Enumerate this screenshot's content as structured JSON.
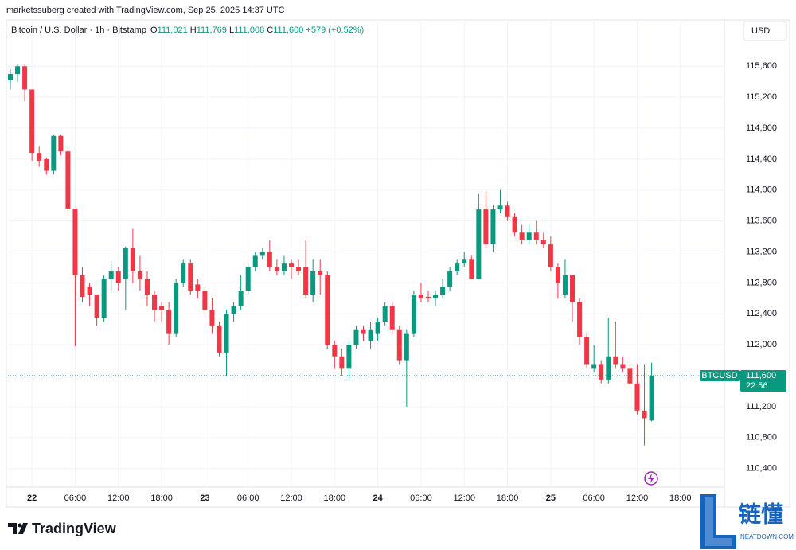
{
  "header": {
    "credit": "marketssuberg created with TradingView.com, Sep 25, 2025 14:37 UTC",
    "symbol": "Bitcoin / U.S. Dollar · 1h · Bitstamp",
    "o_label": "O",
    "o": "111,021",
    "h_label": "H",
    "h": "111,769",
    "l_label": "L",
    "l": "111,008",
    "c_label": "C",
    "c": "111,600",
    "change": "+579 (+0.52%)",
    "currency": "USD"
  },
  "brand": "TradingView",
  "watermark": {
    "name": "链懂",
    "site": "NEATDOWN.COM"
  },
  "last_price": {
    "symbol": "BTCUSD",
    "label": "111,600",
    "countdown": "22:56"
  },
  "chart_data": {
    "type": "candlestick",
    "up_color": "#089981",
    "down_color": "#f23645",
    "grid": true,
    "xlim": [
      -0.33,
      99.1
    ],
    "ylim": [
      110160,
      116200
    ],
    "xticks": [
      {
        "value": 3,
        "label": "22"
      },
      {
        "value": 9,
        "label": "06:00"
      },
      {
        "value": 15,
        "label": "12:00"
      },
      {
        "value": 21,
        "label": "18:00"
      },
      {
        "value": 27,
        "label": "23"
      },
      {
        "value": 33,
        "label": "06:00"
      },
      {
        "value": 39,
        "label": "12:00"
      },
      {
        "value": 45,
        "label": "18:00"
      },
      {
        "value": 51,
        "label": "24"
      },
      {
        "value": 57,
        "label": "06:00"
      },
      {
        "value": 63,
        "label": "12:00"
      },
      {
        "value": 69,
        "label": "18:00"
      },
      {
        "value": 75,
        "label": "25"
      },
      {
        "value": 81,
        "label": "06:00"
      },
      {
        "value": 87,
        "label": "12:00"
      },
      {
        "value": 93,
        "label": "18:00"
      }
    ],
    "yticks": [
      {
        "value": 110400,
        "label": "110,400"
      },
      {
        "value": 110800,
        "label": "110,800"
      },
      {
        "value": 111200,
        "label": "111,200"
      },
      {
        "value": 111600,
        "label": "111,600"
      },
      {
        "value": 112000,
        "label": "112,000"
      },
      {
        "value": 112400,
        "label": "112,400"
      },
      {
        "value": 112800,
        "label": "112,800"
      },
      {
        "value": 113200,
        "label": "113,200"
      },
      {
        "value": 113600,
        "label": "113,600"
      },
      {
        "value": 114000,
        "label": "114,000"
      },
      {
        "value": 114400,
        "label": "114,400"
      },
      {
        "value": 114800,
        "label": "114,800"
      },
      {
        "value": 115200,
        "label": "115,200"
      },
      {
        "value": 115600,
        "label": "115,600"
      }
    ],
    "open": [
      115420,
      115500,
      115600,
      115300,
      114480,
      114400,
      114250,
      114700,
      114500,
      113760,
      112900,
      112750,
      112650,
      112350,
      112850,
      112950,
      112850,
      113250,
      112950,
      112850,
      112650,
      112500,
      112450,
      112150,
      112800,
      113050,
      112780,
      112700,
      112450,
      112250,
      111900,
      112400,
      112500,
      112700,
      113000,
      113150,
      113200,
      113000,
      112950,
      113050,
      113000,
      113000,
      112650,
      112950,
      112900,
      112000,
      111850,
      111700,
      112000,
      112200,
      112050,
      112150,
      112300,
      112500,
      112200,
      111800,
      112150,
      112650,
      112620,
      112600,
      112650,
      112750,
      112950,
      113050,
      113100,
      112850,
      113750,
      113300,
      113750,
      113800,
      113650,
      113450,
      113350,
      113450,
      113350,
      113300,
      113000,
      112650,
      112900,
      112550,
      112100,
      111700,
      111750,
      111550,
      111850,
      111750,
      111700,
      111500,
      111150,
      111021
    ],
    "high": [
      115560,
      115620,
      115620,
      115300,
      114560,
      114420,
      114720,
      114720,
      114560,
      113760,
      113000,
      112800,
      112650,
      112900,
      113050,
      113000,
      113270,
      113500,
      113150,
      112950,
      112700,
      112550,
      112550,
      112850,
      113100,
      113100,
      112850,
      112750,
      112600,
      112300,
      112450,
      112550,
      112900,
      113050,
      113200,
      113250,
      113350,
      113100,
      113150,
      113100,
      113100,
      113350,
      113100,
      113100,
      112950,
      112050,
      111950,
      112050,
      112250,
      112250,
      112300,
      112350,
      112550,
      112550,
      112250,
      112200,
      112700,
      112800,
      112700,
      112700,
      112850,
      113000,
      113100,
      113200,
      113150,
      113950,
      113980,
      113800,
      114000,
      113850,
      113700,
      113550,
      113550,
      113600,
      113450,
      113400,
      113050,
      113100,
      112900,
      112600,
      112150,
      112000,
      111800,
      112350,
      112300,
      111850,
      111800,
      111750,
      111750,
      111769
    ],
    "low": [
      115300,
      115400,
      115150,
      114380,
      114300,
      114200,
      114200,
      114450,
      113700,
      111980,
      112550,
      112500,
      112250,
      112300,
      112700,
      112700,
      112450,
      112800,
      112700,
      112500,
      112300,
      112300,
      112000,
      112100,
      112750,
      112650,
      112600,
      112400,
      112150,
      111850,
      111600,
      112300,
      112450,
      112650,
      112950,
      113100,
      112950,
      112900,
      112900,
      112850,
      112900,
      112600,
      112550,
      112650,
      111950,
      111700,
      111600,
      111550,
      111950,
      112050,
      111950,
      112050,
      112250,
      112150,
      111750,
      111200,
      112100,
      112550,
      112550,
      112500,
      112600,
      112700,
      112900,
      113000,
      112850,
      112850,
      113250,
      113200,
      113700,
      113600,
      113400,
      113300,
      113300,
      113300,
      113250,
      112950,
      112600,
      112600,
      112300,
      112000,
      111700,
      111650,
      111500,
      111500,
      111700,
      111650,
      111450,
      111100,
      110700,
      111008
    ],
    "close": [
      115500,
      115600,
      115300,
      114480,
      114380,
      114250,
      114700,
      114500,
      113760,
      112900,
      112620,
      112650,
      112350,
      112850,
      112950,
      112800,
      113250,
      112950,
      112850,
      112650,
      112450,
      112450,
      112150,
      112800,
      113050,
      112700,
      112700,
      112450,
      112250,
      111900,
      112400,
      112500,
      112700,
      113000,
      113150,
      113200,
      113000,
      112950,
      113050,
      113000,
      112950,
      112650,
      112950,
      112900,
      112000,
      111850,
      111700,
      112000,
      112200,
      112150,
      112200,
      112300,
      112500,
      112200,
      111800,
      112150,
      112650,
      112600,
      112600,
      112650,
      112750,
      112950,
      113050,
      113100,
      112850,
      113750,
      113300,
      113750,
      113800,
      113650,
      113450,
      113350,
      113450,
      113350,
      113300,
      113000,
      112800,
      112900,
      112550,
      112100,
      111750,
      111750,
      111550,
      111850,
      111750,
      111700,
      111500,
      111150,
      111050,
      111600
    ]
  }
}
